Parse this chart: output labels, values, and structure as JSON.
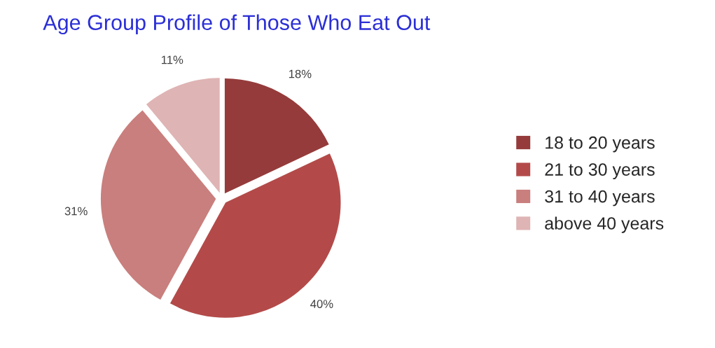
{
  "chart_data": {
    "type": "pie",
    "title": "Age Group Profile of Those Who Eat Out",
    "categories": [
      "18 to 20 years",
      "21 to 30 years",
      "31 to 40 years",
      "above 40 years"
    ],
    "values": [
      18,
      40,
      31,
      11
    ],
    "colors": [
      "#953b3b",
      "#b34a49",
      "#c97f7d",
      "#dfb4b4"
    ],
    "value_labels": [
      "18%",
      "40%",
      "31%",
      "11%"
    ],
    "legend": "right"
  }
}
